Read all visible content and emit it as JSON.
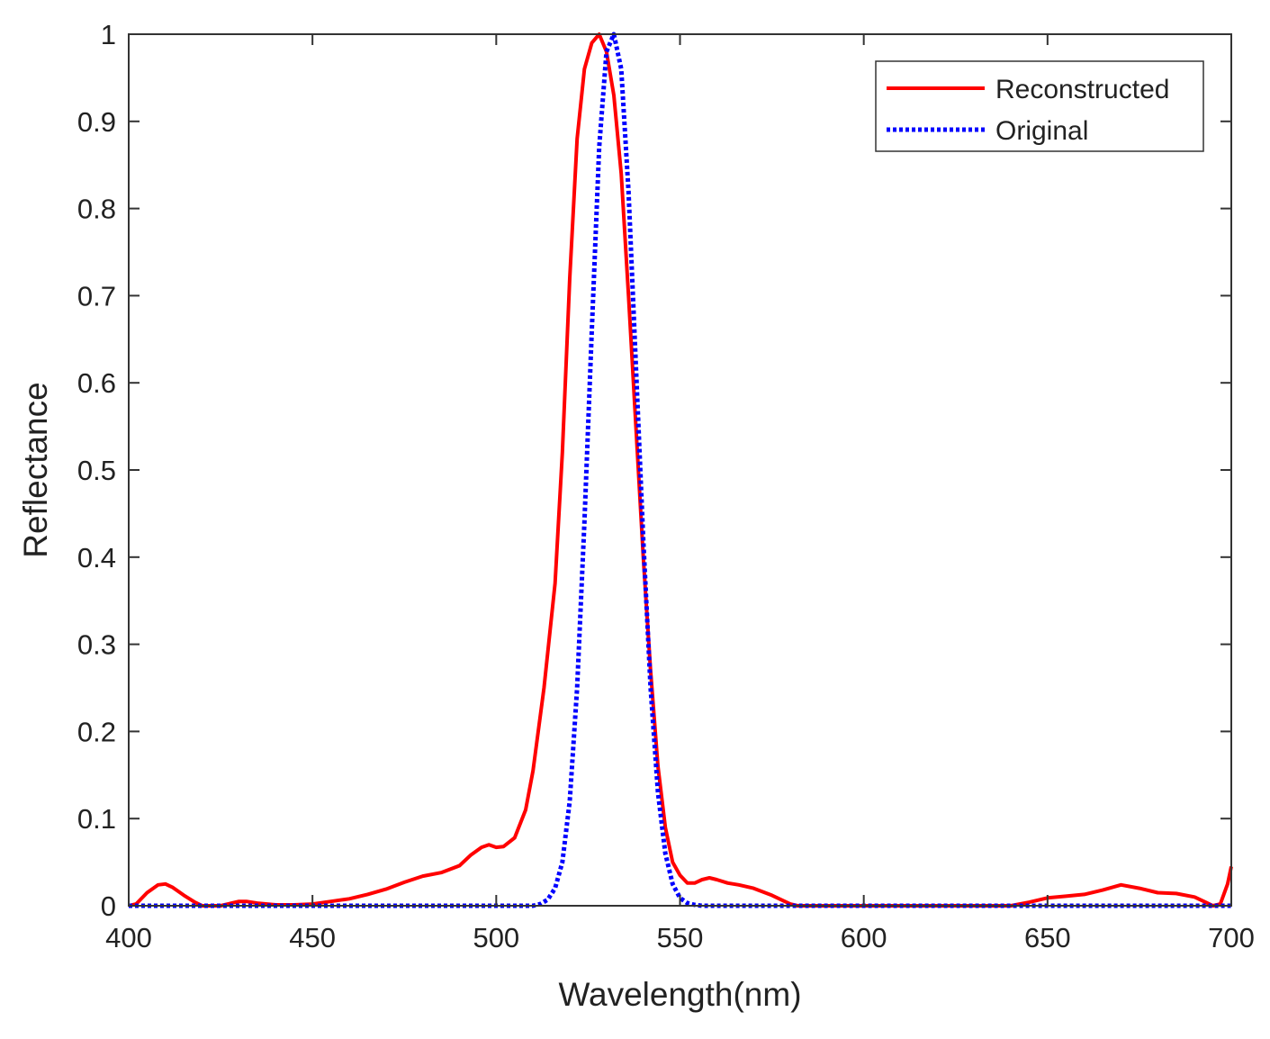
{
  "chart_data": {
    "type": "line",
    "title": "",
    "xlabel": "Wavelength(nm)",
    "ylabel": "Reflectance",
    "xlim": [
      400,
      700
    ],
    "ylim": [
      0,
      1
    ],
    "xticks": [
      400,
      450,
      500,
      550,
      600,
      650,
      700
    ],
    "yticks": [
      0,
      0.1,
      0.2,
      0.3,
      0.4,
      0.5,
      0.6,
      0.7,
      0.8,
      0.9,
      1
    ],
    "xtick_labels": [
      "400",
      "450",
      "500",
      "550",
      "600",
      "650",
      "700"
    ],
    "ytick_labels": [
      "0",
      "0.1",
      "0.2",
      "0.3",
      "0.4",
      "0.5",
      "0.6",
      "0.7",
      "0.8",
      "0.9",
      "1"
    ],
    "grid": false,
    "legend_position": "top-right",
    "series": [
      {
        "name": "Reconstructed",
        "color": "#ff0000",
        "style": "solid",
        "x": [
          400,
          402,
          405,
          408,
          410,
          412,
          415,
          418,
          420,
          425,
          428,
          430,
          432,
          435,
          440,
          445,
          450,
          455,
          460,
          465,
          470,
          475,
          480,
          485,
          490,
          493,
          496,
          498,
          500,
          502,
          505,
          508,
          510,
          513,
          516,
          518,
          520,
          522,
          524,
          526,
          528,
          530,
          532,
          534,
          536,
          538,
          540,
          542,
          544,
          546,
          548,
          550,
          552,
          554,
          556,
          558,
          560,
          563,
          566,
          570,
          575,
          580,
          582,
          590,
          600,
          610,
          620,
          630,
          640,
          645,
          650,
          655,
          660,
          665,
          670,
          675,
          680,
          685,
          690,
          693,
          695,
          697,
          699,
          700
        ],
        "values": [
          0.0,
          0.002,
          0.015,
          0.024,
          0.025,
          0.021,
          0.012,
          0.004,
          0.0,
          0.0,
          0.003,
          0.005,
          0.005,
          0.003,
          0.001,
          0.001,
          0.002,
          0.005,
          0.008,
          0.013,
          0.019,
          0.027,
          0.034,
          0.038,
          0.046,
          0.058,
          0.067,
          0.07,
          0.067,
          0.068,
          0.078,
          0.11,
          0.155,
          0.25,
          0.37,
          0.52,
          0.72,
          0.88,
          0.96,
          0.99,
          1.0,
          0.98,
          0.93,
          0.84,
          0.7,
          0.55,
          0.4,
          0.27,
          0.16,
          0.09,
          0.05,
          0.035,
          0.026,
          0.026,
          0.03,
          0.032,
          0.03,
          0.026,
          0.024,
          0.02,
          0.012,
          0.002,
          0.0,
          0.0,
          0.0,
          0.0,
          0.0,
          0.0,
          0.0,
          0.004,
          0.009,
          0.011,
          0.013,
          0.018,
          0.024,
          0.02,
          0.015,
          0.014,
          0.01,
          0.004,
          0.0,
          0.002,
          0.025,
          0.045
        ]
      },
      {
        "name": "Original",
        "color": "#0000ff",
        "style": "dotted",
        "x": [
          400,
          505,
          510,
          512,
          514,
          516,
          518,
          520,
          522,
          524,
          526,
          528,
          530,
          532,
          534,
          536,
          538,
          540,
          542,
          544,
          546,
          548,
          550,
          552,
          554,
          556,
          560,
          600,
          650,
          700
        ],
        "values": [
          0.0,
          0.0,
          0.0,
          0.002,
          0.007,
          0.02,
          0.05,
          0.12,
          0.25,
          0.44,
          0.66,
          0.87,
          0.98,
          1.0,
          0.96,
          0.82,
          0.62,
          0.42,
          0.25,
          0.13,
          0.06,
          0.025,
          0.009,
          0.003,
          0.001,
          0.0,
          0.0,
          0.0,
          0.0,
          0.0
        ]
      }
    ]
  }
}
